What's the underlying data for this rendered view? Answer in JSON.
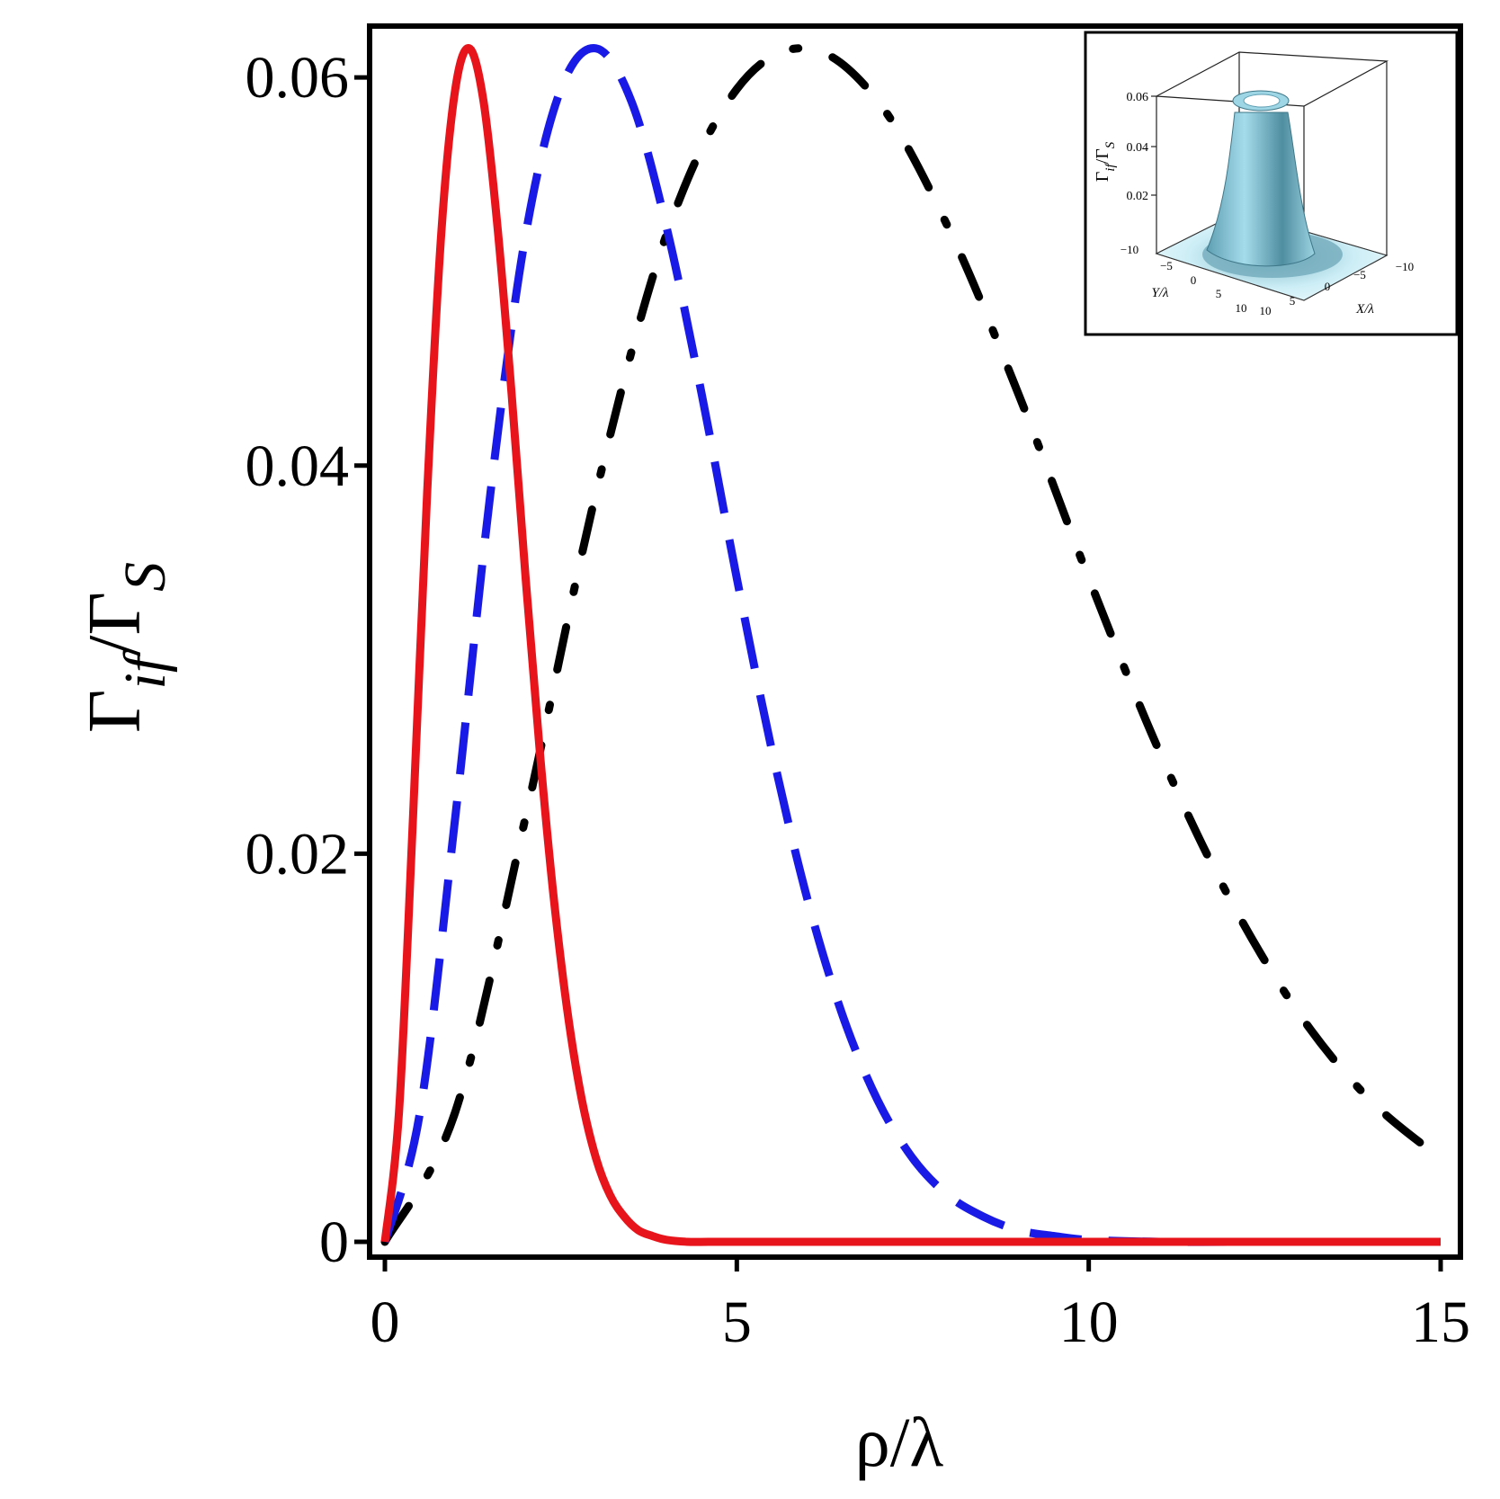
{
  "chart_data": {
    "type": "line",
    "xlabel": "ρ/λ",
    "ylabel": {
      "base": "Γ",
      "sub": "if",
      "sep": "/Γ",
      "tail": "S"
    },
    "xlim": [
      0,
      15
    ],
    "ylim": [
      0,
      0.062
    ],
    "x_ticks": [
      {
        "value": 0,
        "label": "0"
      },
      {
        "value": 5,
        "label": "5"
      },
      {
        "value": 10,
        "label": "10"
      },
      {
        "value": 15,
        "label": "15"
      }
    ],
    "y_ticks": [
      {
        "value": 0,
        "label": "0"
      },
      {
        "value": 0.02,
        "label": "0.02"
      },
      {
        "value": 0.04,
        "label": "0.04"
      },
      {
        "value": 0.06,
        "label": "0.06"
      }
    ],
    "grid": false,
    "series": [
      {
        "color": "#e8141b",
        "style": "solid",
        "x": [
          0,
          0.2,
          0.4,
          0.6,
          0.8,
          1.0,
          1.2,
          1.4,
          1.6,
          1.8,
          2.0,
          2.2,
          2.4,
          2.6,
          2.8,
          3.0,
          3.2,
          3.4,
          3.6,
          3.8,
          4.0,
          4.3,
          4.6,
          5.0,
          6,
          8,
          10,
          12,
          15
        ],
        "y": [
          0,
          0.0067,
          0.0219,
          0.0386,
          0.0519,
          0.0594,
          0.0615,
          0.0588,
          0.0523,
          0.0437,
          0.0342,
          0.0253,
          0.0177,
          0.0117,
          0.0073,
          0.0043,
          0.0024,
          0.0013,
          0.0006,
          0.0003,
          0.0001,
          0,
          0,
          0,
          0,
          0,
          0,
          0,
          0
        ]
      },
      {
        "color": "#1a1ae6",
        "style": "dashed",
        "x": [
          0,
          0.5,
          1.0,
          1.5,
          2.0,
          2.5,
          3.0,
          3.5,
          4.0,
          4.5,
          5.0,
          5.5,
          6.0,
          6.5,
          7.0,
          7.5,
          8.0,
          8.5,
          9.0,
          9.5,
          10.0,
          11,
          12,
          13,
          14,
          15
        ],
        "y": [
          0,
          0.0067,
          0.0219,
          0.0386,
          0.0519,
          0.0594,
          0.0615,
          0.0588,
          0.0523,
          0.0437,
          0.0342,
          0.0253,
          0.0177,
          0.0117,
          0.0073,
          0.0043,
          0.0024,
          0.0013,
          0.0006,
          0.0003,
          0.0001,
          0,
          0,
          0,
          0,
          0
        ]
      },
      {
        "color": "#000000",
        "style": "dashdot",
        "x": [
          0,
          1,
          2,
          3,
          4,
          5,
          6,
          7,
          8,
          9,
          10,
          11,
          12,
          13,
          14,
          15
        ],
        "y": [
          0,
          0.0067,
          0.0219,
          0.0386,
          0.0519,
          0.0594,
          0.0615,
          0.0588,
          0.0523,
          0.0437,
          0.0342,
          0.0253,
          0.0177,
          0.0117,
          0.0073,
          0.0043
        ]
      }
    ]
  },
  "inset": {
    "type": "surface3d",
    "zlabel": {
      "base": "Γ",
      "sub": "if",
      "sep": "/Γ",
      "tail": "S"
    },
    "z_ticks": [
      "0.06",
      "0.04",
      "0.02"
    ],
    "ylabel": "Y/λ",
    "xlabel": "X/λ",
    "y_ticks": [
      "−10",
      "−5",
      "0",
      "5",
      "10"
    ],
    "x_ticks": [
      "10",
      "5",
      "0",
      "−5",
      "−10"
    ],
    "surface_color": "#8fd0e3",
    "surface_shadow": "#4f8ea0"
  }
}
